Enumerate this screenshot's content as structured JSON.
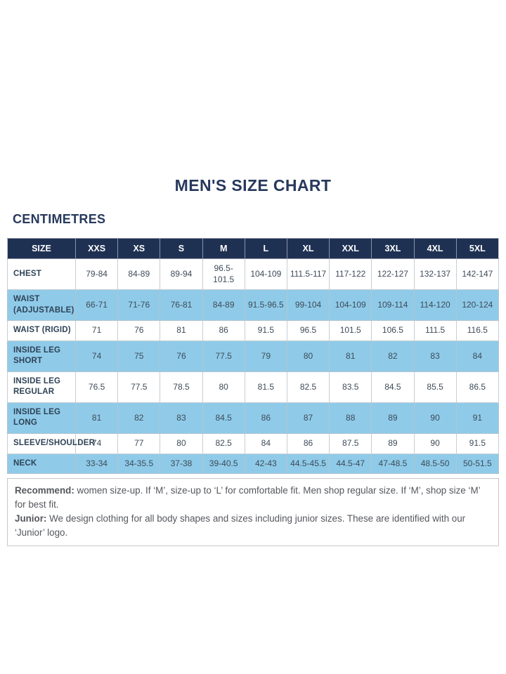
{
  "page": {
    "title": "MEN'S SIZE CHART",
    "unit_label": "CENTIMETRES"
  },
  "chart_data": {
    "type": "table",
    "title": "MEN'S SIZE CHART",
    "unit": "centimetres",
    "columns": [
      "SIZE",
      "XXS",
      "XS",
      "S",
      "M",
      "L",
      "XL",
      "XXL",
      "3XL",
      "4XL",
      "5XL"
    ],
    "rows": [
      {
        "label": "CHEST",
        "values": [
          "79-84",
          "84-89",
          "89-94",
          "96.5-101.5",
          "104-109",
          "111.5-117",
          "117-122",
          "122-127",
          "132-137",
          "142-147"
        ]
      },
      {
        "label": "WAIST (ADJUSTABLE)",
        "values": [
          "66-71",
          "71-76",
          "76-81",
          "84-89",
          "91.5-96.5",
          "99-104",
          "104-109",
          "109-114",
          "114-120",
          "120-124"
        ]
      },
      {
        "label": "WAIST (RIGID)",
        "values": [
          "71",
          "76",
          "81",
          "86",
          "91.5",
          "96.5",
          "101.5",
          "106.5",
          "111.5",
          "116.5"
        ]
      },
      {
        "label": "INSIDE LEG SHORT",
        "values": [
          "74",
          "75",
          "76",
          "77.5",
          "79",
          "80",
          "81",
          "82",
          "83",
          "84"
        ]
      },
      {
        "label": "INSIDE LEG REGULAR",
        "values": [
          "76.5",
          "77.5",
          "78.5",
          "80",
          "81.5",
          "82.5",
          "83.5",
          "84.5",
          "85.5",
          "86.5"
        ]
      },
      {
        "label": "INSIDE LEG LONG",
        "values": [
          "81",
          "82",
          "83",
          "84.5",
          "86",
          "87",
          "88",
          "89",
          "90",
          "91"
        ]
      },
      {
        "label": "SLEEVE/SHOULDER",
        "values": [
          "74",
          "77",
          "80",
          "82.5",
          "84",
          "86",
          "87.5",
          "89",
          "90",
          "91.5"
        ]
      },
      {
        "label": "NECK",
        "values": [
          "33-34",
          "34-35.5",
          "37-38",
          "39-40.5",
          "42-43",
          "44.5-45.5",
          "44.5-47",
          "47-48.5",
          "48.5-50",
          "50-51.5"
        ]
      }
    ],
    "row_striping": "alternating white and light blue, starting white on CHEST",
    "legend_position": "none",
    "grid": true
  },
  "notes": [
    {
      "label": "Recommend:",
      "text": " women size-up. If ‘M’, size-up to ‘L’ for comfortable fit. Men shop regular size. If ‘M’, shop size ‘M’ for best fit."
    },
    {
      "label": "Junior:",
      "text": " We design clothing for all body shapes and sizes including junior sizes. These are identified with our ‘Junior’ logo."
    }
  ],
  "colors": {
    "header_bg": "#1f3153",
    "header_text": "#ffffff",
    "alt_row_bg": "#8fcbe9",
    "title_text": "#27395d",
    "body_text": "#3e4a57",
    "border": "#c6ced3",
    "notes_text": "#54575c"
  }
}
